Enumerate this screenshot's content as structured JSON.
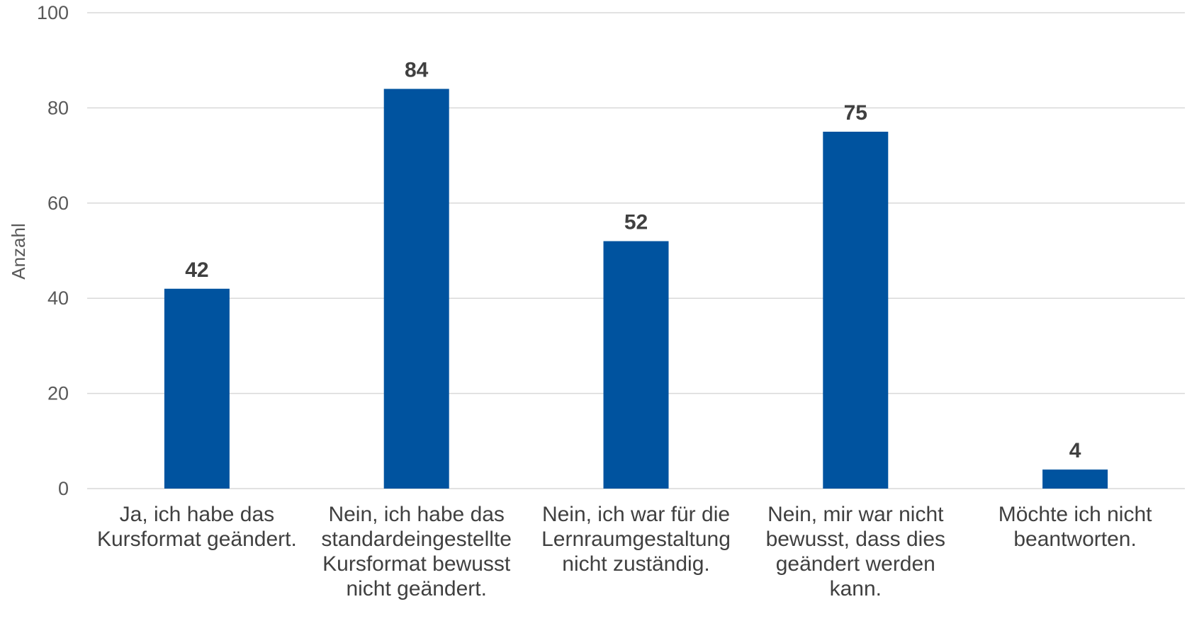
{
  "chart_data": {
    "type": "bar",
    "title": "",
    "xlabel": "",
    "ylabel": "Anzahl",
    "ylim": [
      0,
      100
    ],
    "yticks": [
      0,
      20,
      40,
      60,
      80,
      100
    ],
    "grid": true,
    "legend": "none",
    "bar_color": "#00539f",
    "categories": [
      [
        "Ja, ich habe das",
        "Kursformat geändert."
      ],
      [
        "Nein, ich habe das",
        "standardeingestellte",
        "Kursformat bewusst",
        "nicht geändert."
      ],
      [
        "Nein, ich war für die",
        "Lernraumgestaltung",
        "nicht zuständig."
      ],
      [
        "Nein, mir war nicht",
        "bewusst, dass dies",
        "geändert werden",
        "kann."
      ],
      [
        "Möchte ich nicht",
        "beantworten."
      ]
    ],
    "values": [
      42,
      84,
      52,
      75,
      4
    ]
  }
}
